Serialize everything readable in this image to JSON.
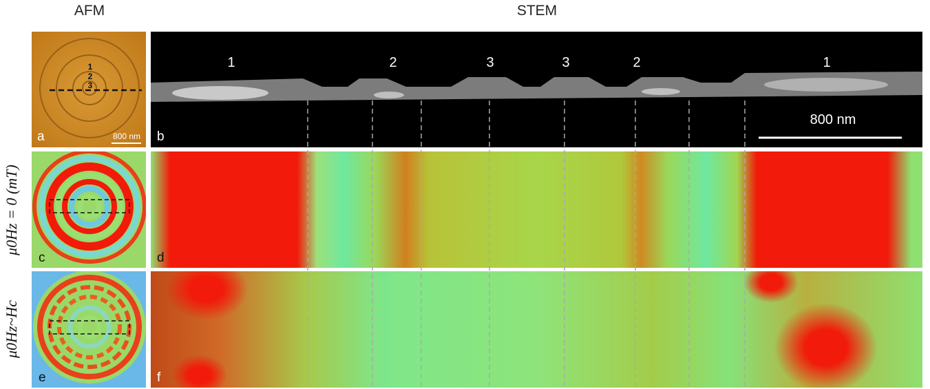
{
  "header": {
    "left": "AFM",
    "right": "STEM"
  },
  "row_labels": [
    "μ0Hz = 0 (mT)",
    "μ0Hz~Hc"
  ],
  "panels": {
    "a": {
      "label": "a",
      "rings": [
        "1",
        "2",
        "3"
      ],
      "scale_bar": "800 nm"
    },
    "b": {
      "label": "b",
      "regions": [
        "1",
        "2",
        "3",
        "3",
        "2",
        "1"
      ],
      "scale_bar": "800 nm"
    },
    "c": {
      "label": "c"
    },
    "d": {
      "label": "d"
    },
    "e": {
      "label": "e"
    },
    "f": {
      "label": "f"
    }
  }
}
